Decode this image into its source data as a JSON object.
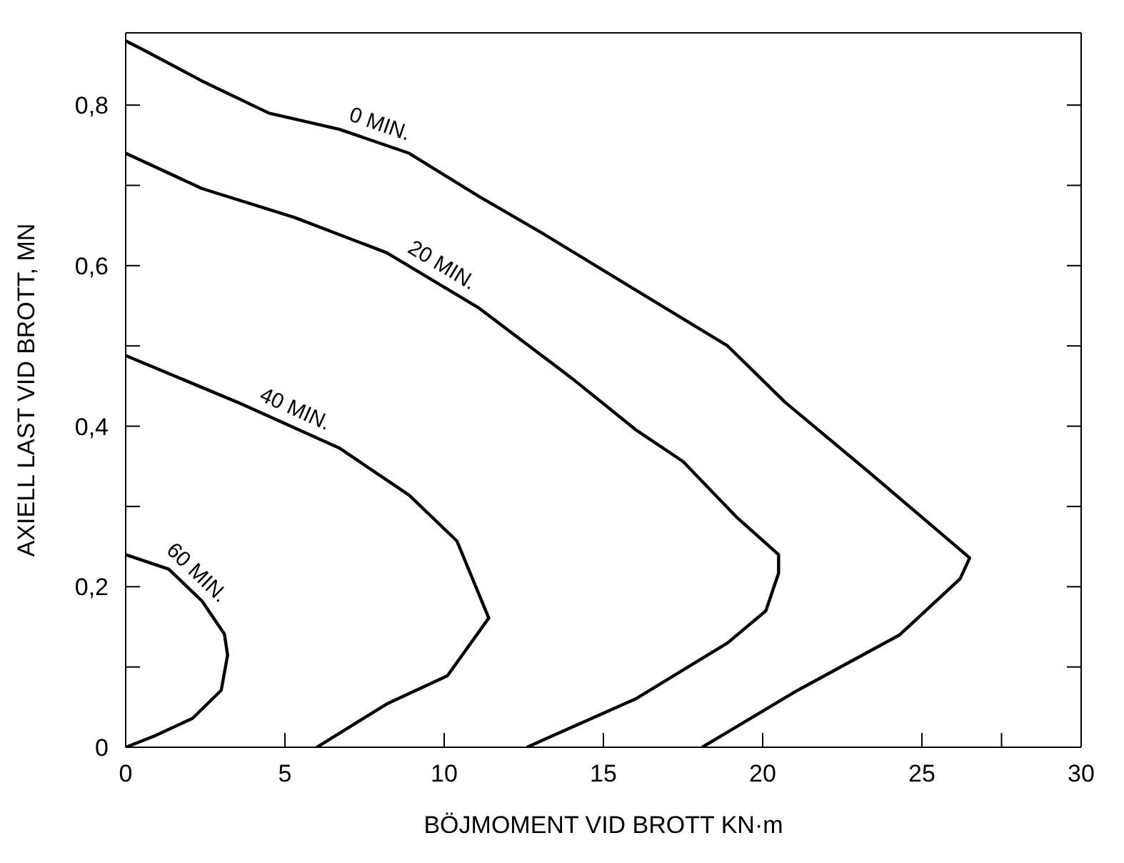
{
  "chart_data": {
    "type": "line",
    "xlabel": "BÖJMOMENT VID BROTT KN·m",
    "ylabel": "AXIELL LAST VID BROTT, MN",
    "xlim": [
      0,
      30
    ],
    "xticks": [
      0,
      5,
      10,
      15,
      20,
      25,
      {
        "value": 27.5,
        "label": null
      },
      30
    ],
    "ylim": [
      0,
      0.89
    ],
    "yticks": [
      {
        "value": 0,
        "label": "0"
      },
      {
        "value": 0.1,
        "label": null
      },
      {
        "value": 0.2,
        "label": "0,2"
      },
      {
        "value": 0.3,
        "label": null
      },
      {
        "value": 0.4,
        "label": "0,4"
      },
      {
        "value": 0.5,
        "label": null
      },
      {
        "value": 0.6,
        "label": "0,6"
      },
      {
        "value": 0.7,
        "label": null
      },
      {
        "value": 0.8,
        "label": "0,8"
      }
    ],
    "grid": false,
    "legend": false,
    "marker": "none",
    "line_style": "solid",
    "series": [
      {
        "name": "0 MIN.",
        "color": "#000000",
        "x": [
          0,
          0.5,
          2.4,
          4.5,
          6.7,
          8.9,
          11.1,
          13.1,
          16.0,
          18.9,
          20.7,
          23.3,
          26.5,
          26.2,
          24.3,
          21.1,
          18.1
        ],
        "values": [
          0.88,
          0.87,
          0.83,
          0.79,
          0.77,
          0.74,
          0.686,
          0.64,
          0.57,
          0.5,
          0.43,
          0.344,
          0.236,
          0.21,
          0.14,
          0.071,
          0
        ]
      },
      {
        "name": "20 MIN.",
        "color": "#000000",
        "x": [
          0,
          2.4,
          5.3,
          8.2,
          11.1,
          14.0,
          16.0,
          17.5,
          19.2,
          20.5,
          20.5,
          20.1,
          18.9,
          16.0,
          13.1,
          12.6
        ],
        "values": [
          0.74,
          0.696,
          0.66,
          0.616,
          0.547,
          0.46,
          0.396,
          0.356,
          0.286,
          0.24,
          0.217,
          0.17,
          0.13,
          0.06,
          0.009,
          0
        ]
      },
      {
        "name": "40 MIN.",
        "color": "#000000",
        "x": [
          0,
          3.5,
          6.7,
          8.9,
          10.4,
          11.4,
          10.1,
          8.2,
          6.0
        ],
        "values": [
          0.488,
          0.43,
          0.373,
          0.314,
          0.257,
          0.161,
          0.089,
          0.054,
          0
        ]
      },
      {
        "name": "60 MIN.",
        "color": "#000000",
        "x": [
          0,
          1.35,
          2.4,
          3.1,
          3.2,
          3.0,
          2.1,
          0.9,
          0
        ],
        "values": [
          0.24,
          0.222,
          0.182,
          0.141,
          0.115,
          0.071,
          0.036,
          0.014,
          0
        ]
      }
    ]
  }
}
